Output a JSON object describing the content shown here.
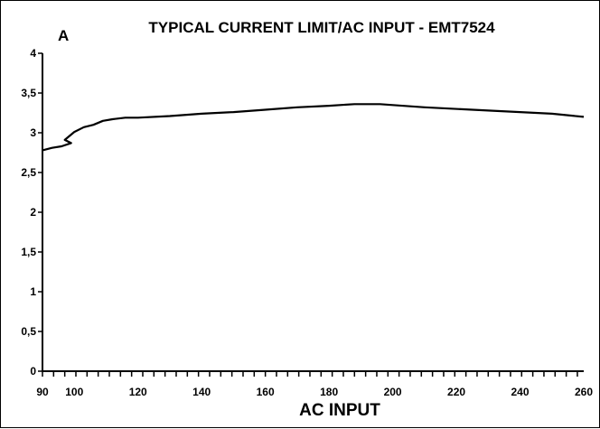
{
  "chart_data": {
    "type": "line",
    "title": "TYPICAL CURRENT LIMIT/AC INPUT - EMT7524",
    "xlabel": "AC INPUT",
    "ylabel": "A",
    "xlim": [
      90,
      260
    ],
    "ylim": [
      0,
      4
    ],
    "x_ticks": [
      90,
      100,
      120,
      140,
      160,
      180,
      200,
      220,
      240,
      260
    ],
    "y_ticks": [
      "0",
      "0,5",
      "1",
      "1,5",
      "2",
      "2,5",
      "3",
      "3,5",
      "4"
    ],
    "y_tick_values": [
      0,
      0.5,
      1,
      1.5,
      2,
      2.5,
      3,
      3.5,
      4
    ],
    "x_minor_step": 3.5,
    "grid": false,
    "series": [
      {
        "color": "#000000",
        "x": [
          90,
          93,
          96,
          99,
          97,
          100,
          103,
          106,
          109,
          112,
          116,
          120,
          130,
          140,
          150,
          160,
          170,
          180,
          188,
          196,
          210,
          230,
          250,
          260
        ],
        "y": [
          2.78,
          2.81,
          2.83,
          2.87,
          2.91,
          3.01,
          3.07,
          3.1,
          3.15,
          3.17,
          3.19,
          3.19,
          3.21,
          3.24,
          3.26,
          3.29,
          3.32,
          3.34,
          3.36,
          3.36,
          3.32,
          3.28,
          3.24,
          3.2
        ]
      }
    ]
  }
}
